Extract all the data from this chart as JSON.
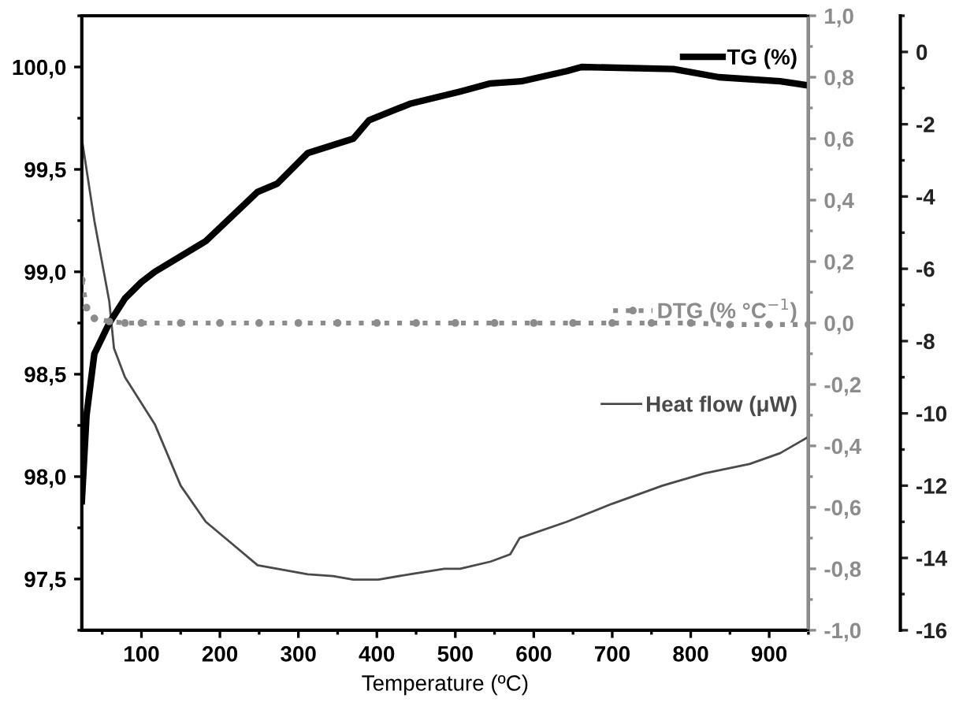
{
  "chart_data": {
    "type": "line",
    "xlabel": "Temperature (ºC)",
    "xlim": [
      24,
      950
    ],
    "xticks": [
      100,
      200,
      300,
      400,
      500,
      600,
      700,
      800,
      900
    ],
    "ylim": [
      97.25,
      100.25
    ],
    "yticks": [
      {
        "value": 97.5,
        "label": "97,5"
      },
      {
        "value": 98.0,
        "label": "98,0"
      },
      {
        "value": 98.5,
        "label": "98,5"
      },
      {
        "value": 99.0,
        "label": "99,0"
      },
      {
        "value": 99.5,
        "label": "99,5"
      },
      {
        "value": 100.0,
        "label": "100,0"
      }
    ],
    "y2lim": [
      -1.0,
      1.0
    ],
    "y2ticks": [
      {
        "value": -1.0,
        "label": "-1,0"
      },
      {
        "value": -0.8,
        "label": "-0,8"
      },
      {
        "value": -0.6,
        "label": "-0,6"
      },
      {
        "value": -0.4,
        "label": "-0,4"
      },
      {
        "value": -0.2,
        "label": "-0,2"
      },
      {
        "value": 0.0,
        "label": "0,0"
      },
      {
        "value": 0.2,
        "label": "0,2"
      },
      {
        "value": 0.4,
        "label": "0,4"
      },
      {
        "value": 0.6,
        "label": "0,6"
      },
      {
        "value": 0.8,
        "label": "0,8"
      },
      {
        "value": 1.0,
        "label": "1,0"
      }
    ],
    "y3lim": [
      -16,
      1
    ],
    "y3ticks": [
      -16,
      -14,
      -12,
      -10,
      -8,
      -6,
      -4,
      -2,
      0
    ],
    "legend": "right",
    "grid": false,
    "series": [
      {
        "name": "TG (%)",
        "color": "#000000",
        "line_style": "solid",
        "marker": "none",
        "x": [
          24,
          30,
          40,
          59,
          79,
          100,
          117,
          182,
          248,
          273,
          312,
          370,
          390,
          442,
          506,
          545,
          584,
          642,
          661,
          778,
          836,
          914,
          950
        ],
        "values": [
          97.88,
          98.3,
          98.6,
          98.75,
          98.87,
          98.95,
          99.0,
          99.15,
          99.39,
          99.43,
          99.58,
          99.65,
          99.74,
          99.82,
          99.88,
          99.92,
          99.93,
          99.98,
          100.0,
          99.99,
          99.95,
          99.93,
          99.91
        ]
      },
      {
        "name": "DTG (% °C$^{−1}$)",
        "color": "#8c8c8c",
        "axis": "y2",
        "line_style": "dotted",
        "marker": "circle",
        "x": [
          24,
          30,
          40,
          59,
          79,
          100,
          150,
          200,
          250,
          300,
          350,
          400,
          450,
          500,
          550,
          600,
          650,
          700,
          750,
          800,
          850,
          900,
          950
        ],
        "values": [
          0.14,
          0.05,
          0.015,
          0.005,
          0.0,
          0.0,
          0.0,
          0.0,
          0.0,
          0.0,
          0.0,
          0.0,
          0.0,
          0.0,
          0.0,
          0.0,
          0.0,
          0.0,
          0.0,
          0.0,
          -0.005,
          -0.005,
          -0.005
        ]
      },
      {
        "name": "Heat flow (μW)",
        "color": "#4a4a4a",
        "axis": "y3",
        "line_style": "solid",
        "marker": "none",
        "x": [
          24,
          40,
          59,
          65,
          79,
          117,
          150,
          182,
          215,
          248,
          312,
          344,
          370,
          402,
          442,
          486,
          506,
          545,
          570,
          582,
          642,
          700,
          764,
          817,
          875,
          914,
          950
        ],
        "values": [
          -2.4,
          -4.67,
          -6.9,
          -8.2,
          -9.0,
          -10.3,
          -12.0,
          -13.0,
          -13.6,
          -14.2,
          -14.45,
          -14.5,
          -14.6,
          -14.6,
          -14.45,
          -14.3,
          -14.3,
          -14.1,
          -13.9,
          -13.45,
          -13.0,
          -12.5,
          -12.0,
          -11.66,
          -11.4,
          -11.1,
          -10.65
        ]
      }
    ]
  }
}
